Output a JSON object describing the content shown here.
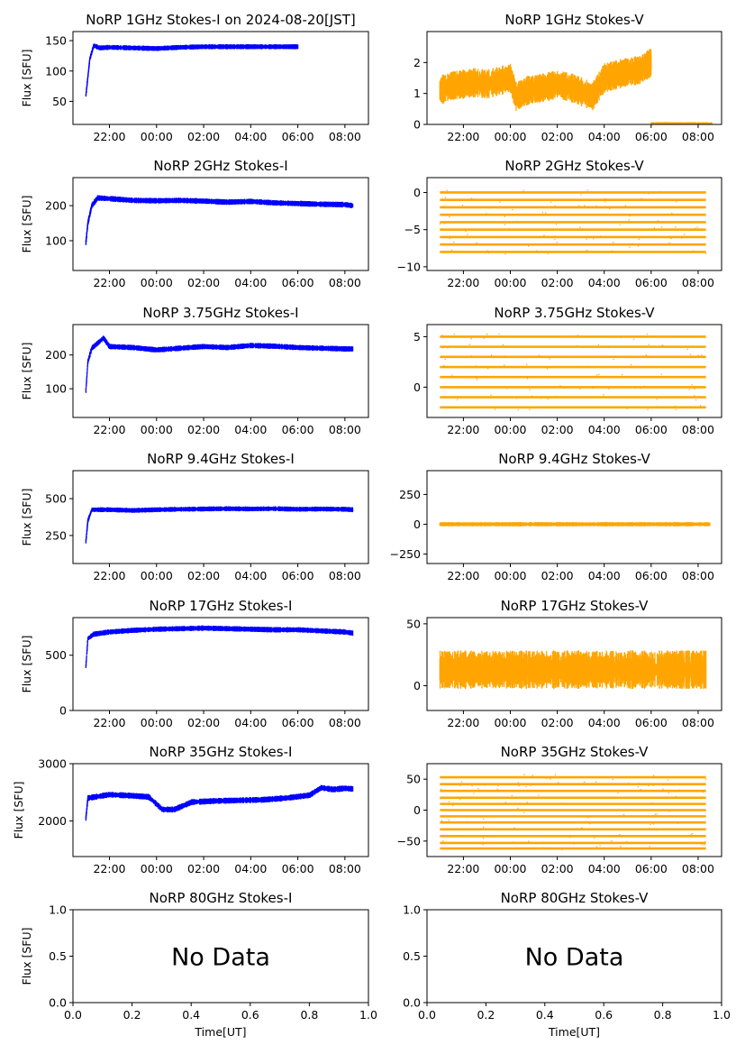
{
  "figure": {
    "date_axis_ticks": [
      "22:00",
      "00:00",
      "02:00",
      "04:00",
      "06:00",
      "08:00"
    ],
    "xlabel": "Time[UT]",
    "ylabel": "Flux [SFU]",
    "no_data_text": "No Data",
    "colors": {
      "stokes_i": "#0000ff",
      "stokes_v": "#ffa500"
    }
  },
  "chart_data": [
    {
      "type": "scatter",
      "id": "1ghz-i",
      "title": "NoRP 1GHz Stokes-I on 2024-08-20[JST]",
      "ylabel": "Flux [SFU]",
      "ylim": [
        12,
        165
      ],
      "yticks": [
        50,
        100,
        150
      ],
      "xlim": [
        "2024-08-19T20:27",
        "2024-08-20T09:00"
      ],
      "series": [
        {
          "color": "#0000ff",
          "t": [
            "2024-08-19T21:00",
            "2024-08-19T21:05",
            "2024-08-19T21:10",
            "2024-08-19T21:20",
            "2024-08-19T21:35",
            "2024-08-19T22:00",
            "2024-08-19T23:00",
            "2024-08-20T00:00",
            "2024-08-20T01:00",
            "2024-08-20T02:00",
            "2024-08-20T03:00",
            "2024-08-20T04:00",
            "2024-08-20T05:00",
            "2024-08-20T06:00"
          ],
          "v": [
            60,
            90,
            120,
            142,
            138,
            139,
            138,
            137,
            139,
            140,
            140,
            140,
            140,
            140
          ],
          "band": 3
        }
      ]
    },
    {
      "type": "scatter",
      "id": "1ghz-v",
      "title": "NoRP 1GHz Stokes-V",
      "ylim": [
        0,
        3
      ],
      "yticks": [
        0,
        1,
        2
      ],
      "xlim": [
        "2024-08-19T20:27",
        "2024-08-20T09:00"
      ],
      "series": [
        {
          "color": "#ffa500",
          "t": [
            "2024-08-19T21:00",
            "2024-08-19T21:30",
            "2024-08-19T22:00",
            "2024-08-19T22:30",
            "2024-08-19T23:00",
            "2024-08-19T23:30",
            "2024-08-20T00:00",
            "2024-08-20T00:15",
            "2024-08-20T00:45",
            "2024-08-20T01:30",
            "2024-08-20T02:00",
            "2024-08-20T02:45",
            "2024-08-20T03:30",
            "2024-08-20T04:00",
            "2024-08-20T04:30",
            "2024-08-20T05:00",
            "2024-08-20T05:30",
            "2024-08-20T06:00"
          ],
          "v": [
            1.1,
            1.25,
            1.3,
            1.35,
            1.3,
            1.4,
            1.5,
            0.9,
            1.1,
            1.2,
            1.3,
            1.15,
            0.9,
            1.5,
            1.6,
            1.7,
            1.75,
            2.0
          ],
          "band": 0.45
        },
        {
          "color": "#ffa500",
          "t": [
            "2024-08-20T06:00",
            "2024-08-20T08:35"
          ],
          "v": [
            0.01,
            0.01
          ],
          "band": 0.01
        }
      ]
    },
    {
      "type": "scatter",
      "id": "2ghz-i",
      "title": "NoRP 2GHz Stokes-I",
      "ylabel": "Flux [SFU]",
      "ylim": [
        15,
        280
      ],
      "yticks": [
        100,
        200
      ],
      "xlim": [
        "2024-08-19T20:27",
        "2024-08-20T09:00"
      ],
      "series": [
        {
          "color": "#0000ff",
          "t": [
            "2024-08-19T21:00",
            "2024-08-19T21:05",
            "2024-08-19T21:15",
            "2024-08-19T21:30",
            "2024-08-19T22:00",
            "2024-08-19T23:00",
            "2024-08-20T00:00",
            "2024-08-20T01:00",
            "2024-08-20T02:00",
            "2024-08-20T03:00",
            "2024-08-20T04:00",
            "2024-08-20T05:00",
            "2024-08-20T06:00",
            "2024-08-20T07:00",
            "2024-08-20T08:00",
            "2024-08-20T08:20"
          ],
          "v": [
            95,
            150,
            200,
            222,
            220,
            215,
            214,
            215,
            213,
            210,
            212,
            208,
            206,
            204,
            203,
            200
          ],
          "band": 6
        }
      ]
    },
    {
      "type": "scatter",
      "id": "2ghz-v",
      "title": "NoRP 2GHz Stokes-V",
      "ylim": [
        -10.5,
        2
      ],
      "yticks": [
        0,
        -5,
        -10
      ],
      "xlim": [
        "2024-08-19T20:27",
        "2024-08-20T09:00"
      ],
      "levels": [
        0,
        -1,
        -2,
        -3,
        -4,
        -5,
        -6,
        -7,
        -8
      ],
      "series": [
        {
          "color": "#ffa500",
          "t": [
            "2024-08-19T21:00",
            "2024-08-20T08:20"
          ],
          "v": [
            0,
            0
          ],
          "band": 0
        }
      ]
    },
    {
      "type": "scatter",
      "id": "375ghz-i",
      "title": "NoRP 3.75GHz Stokes-I",
      "ylabel": "Flux [SFU]",
      "ylim": [
        15,
        290
      ],
      "yticks": [
        100,
        200
      ],
      "xlim": [
        "2024-08-19T20:27",
        "2024-08-20T09:00"
      ],
      "series": [
        {
          "color": "#0000ff",
          "t": [
            "2024-08-19T21:00",
            "2024-08-19T21:05",
            "2024-08-19T21:15",
            "2024-08-19T21:45",
            "2024-08-19T22:00",
            "2024-08-19T23:00",
            "2024-08-20T00:00",
            "2024-08-20T01:00",
            "2024-08-20T02:00",
            "2024-08-20T03:00",
            "2024-08-20T04:00",
            "2024-08-20T05:00",
            "2024-08-20T06:00",
            "2024-08-20T07:00",
            "2024-08-20T08:00",
            "2024-08-20T08:20"
          ],
          "v": [
            95,
            180,
            220,
            250,
            225,
            222,
            215,
            220,
            225,
            222,
            228,
            226,
            222,
            220,
            218,
            218
          ],
          "band": 6
        }
      ]
    },
    {
      "type": "scatter",
      "id": "375ghz-v",
      "title": "NoRP 3.75GHz Stokes-V",
      "ylim": [
        -3,
        6.2
      ],
      "yticks": [
        0,
        5
      ],
      "xlim": [
        "2024-08-19T20:27",
        "2024-08-20T09:00"
      ],
      "levels": [
        -2,
        -1,
        0,
        1,
        2,
        3,
        4,
        5
      ],
      "series": [
        {
          "color": "#ffa500",
          "t": [
            "2024-08-19T21:00",
            "2024-08-20T08:20"
          ],
          "v": [
            0,
            0
          ],
          "band": 0
        }
      ]
    },
    {
      "type": "scatter",
      "id": "94ghz-i",
      "title": "NoRP 9.4GHz Stokes-I",
      "ylabel": "Flux [SFU]",
      "ylim": [
        60,
        690
      ],
      "yticks": [
        250,
        500
      ],
      "xlim": [
        "2024-08-19T20:27",
        "2024-08-20T09:00"
      ],
      "series": [
        {
          "color": "#0000ff",
          "t": [
            "2024-08-19T21:00",
            "2024-08-19T21:05",
            "2024-08-19T21:15",
            "2024-08-19T22:00",
            "2024-08-19T23:00",
            "2024-08-20T00:00",
            "2024-08-20T01:00",
            "2024-08-20T02:00",
            "2024-08-20T03:00",
            "2024-08-20T04:00",
            "2024-08-20T05:00",
            "2024-08-20T06:00",
            "2024-08-20T07:00",
            "2024-08-20T08:00",
            "2024-08-20T08:20"
          ],
          "v": [
            210,
            350,
            425,
            425,
            420,
            425,
            428,
            430,
            432,
            430,
            432,
            428,
            430,
            428,
            425
          ],
          "band": 12
        }
      ]
    },
    {
      "type": "scatter",
      "id": "94ghz-v",
      "title": "NoRP 9.4GHz Stokes-V",
      "ylim": [
        -330,
        450
      ],
      "yticks": [
        250,
        0,
        -250
      ],
      "xlim": [
        "2024-08-19T20:27",
        "2024-08-20T09:00"
      ],
      "series": [
        {
          "color": "#ffa500",
          "t": [
            "2024-08-19T21:00",
            "2024-08-20T08:30"
          ],
          "v": [
            0,
            0
          ],
          "band": 6
        }
      ]
    },
    {
      "type": "scatter",
      "id": "17ghz-i",
      "title": "NoRP 17GHz Stokes-I",
      "ylabel": "Flux [SFU]",
      "ylim": [
        0,
        840
      ],
      "yticks": [
        0,
        500
      ],
      "xlim": [
        "2024-08-19T20:27",
        "2024-08-20T09:00"
      ],
      "series": [
        {
          "color": "#0000ff",
          "t": [
            "2024-08-19T21:00",
            "2024-08-19T21:05",
            "2024-08-19T21:20",
            "2024-08-19T22:00",
            "2024-08-19T23:00",
            "2024-08-20T00:00",
            "2024-08-20T01:00",
            "2024-08-20T02:00",
            "2024-08-20T03:00",
            "2024-08-20T04:00",
            "2024-08-20T05:00",
            "2024-08-20T06:00",
            "2024-08-20T07:00",
            "2024-08-20T08:00",
            "2024-08-20T08:20"
          ],
          "v": [
            400,
            650,
            690,
            710,
            725,
            735,
            740,
            745,
            740,
            735,
            730,
            730,
            720,
            710,
            700
          ],
          "band": 18
        }
      ]
    },
    {
      "type": "scatter",
      "id": "17ghz-v",
      "title": "NoRP 17GHz Stokes-V",
      "ylim": [
        -20,
        55
      ],
      "yticks": [
        0,
        50
      ],
      "xlim": [
        "2024-08-19T20:27",
        "2024-08-20T09:00"
      ],
      "series": [
        {
          "color": "#ffa500",
          "t": [
            "2024-08-19T21:00",
            "2024-08-20T08:20"
          ],
          "v": [
            13,
            13
          ],
          "band": 15
        }
      ]
    },
    {
      "type": "scatter",
      "id": "35ghz-i",
      "title": "NoRP 35GHz Stokes-I",
      "ylabel": "Flux [SFU]",
      "ylim": [
        1380,
        3000
      ],
      "yticks": [
        2000,
        3000
      ],
      "xlim": [
        "2024-08-19T20:27",
        "2024-08-20T09:00"
      ],
      "series": [
        {
          "color": "#0000ff",
          "t": [
            "2024-08-19T21:00",
            "2024-08-19T21:05",
            "2024-08-19T22:00",
            "2024-08-19T23:00",
            "2024-08-19T23:40",
            "2024-08-20T00:15",
            "2024-08-20T00:45",
            "2024-08-20T01:30",
            "2024-08-20T02:30",
            "2024-08-20T03:30",
            "2024-08-20T04:30",
            "2024-08-20T05:30",
            "2024-08-20T06:30",
            "2024-08-20T07:00",
            "2024-08-20T07:30",
            "2024-08-20T08:00",
            "2024-08-20T08:20"
          ],
          "v": [
            2050,
            2400,
            2460,
            2440,
            2420,
            2200,
            2200,
            2330,
            2350,
            2360,
            2370,
            2400,
            2450,
            2580,
            2550,
            2570,
            2560
          ],
          "band": 40
        }
      ]
    },
    {
      "type": "scatter",
      "id": "35ghz-v",
      "title": "NoRP 35GHz Stokes-V",
      "ylim": [
        -75,
        75
      ],
      "yticks": [
        50,
        0,
        -50
      ],
      "xlim": [
        "2024-08-19T20:27",
        "2024-08-20T09:00"
      ],
      "levels": [
        -62,
        -53,
        -42,
        -31,
        -20,
        -10,
        0,
        10,
        20,
        31,
        42,
        53
      ],
      "series": [
        {
          "color": "#ffa500",
          "t": [
            "2024-08-19T21:00",
            "2024-08-20T08:20"
          ],
          "v": [
            0,
            0
          ],
          "band": 0
        }
      ]
    },
    {
      "type": "scatter",
      "id": "80ghz-i",
      "title": "NoRP 80GHz Stokes-I",
      "ylabel": "Flux [SFU]",
      "xlabel": "Time[UT]",
      "no_data": true,
      "xlim": [
        0,
        1
      ],
      "ylim": [
        0,
        1
      ],
      "xticks": [
        "0.0",
        "0.2",
        "0.4",
        "0.6",
        "0.8",
        "1.0"
      ],
      "yticks": [
        "0.0",
        "0.5",
        "1.0"
      ],
      "series": []
    },
    {
      "type": "scatter",
      "id": "80ghz-v",
      "title": "NoRP 80GHz Stokes-V",
      "xlabel": "Time[UT]",
      "no_data": true,
      "xlim": [
        0,
        1
      ],
      "ylim": [
        0,
        1
      ],
      "xticks": [
        "0.0",
        "0.2",
        "0.4",
        "0.6",
        "0.8",
        "1.0"
      ],
      "yticks": [
        "0.0",
        "0.5",
        "1.0"
      ],
      "series": []
    }
  ]
}
